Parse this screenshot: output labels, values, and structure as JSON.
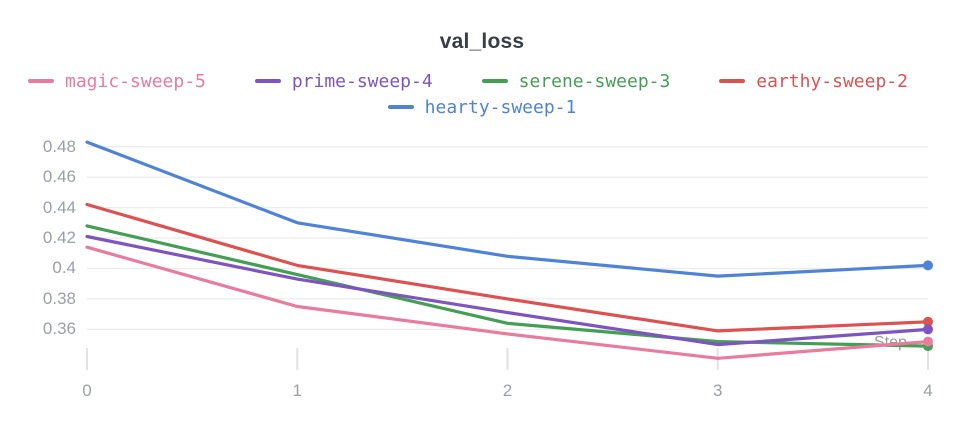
{
  "title": "val_loss",
  "xlabel": "Step",
  "chart_data": {
    "type": "line",
    "title": "val_loss",
    "xlabel": "Step",
    "ylabel": "",
    "x": [
      0,
      1,
      2,
      3,
      4
    ],
    "x_tick_labels": [
      "0",
      "1",
      "2",
      "3",
      "4"
    ],
    "y_ticks": [
      0.48,
      0.46,
      0.44,
      0.42,
      0.4,
      0.38,
      0.36
    ],
    "y_tick_labels": [
      "0.48",
      "0.46",
      "0.44",
      "0.42",
      "0.4",
      "0.38",
      "0.36"
    ],
    "ylim": [
      0.332,
      0.489
    ],
    "xlim": [
      0,
      4
    ],
    "grid": "horizontal",
    "legend_position": "top",
    "grid_color": "#ececec",
    "tick_color": "#e2e2e2",
    "axis_text_color": "#9b9fa6",
    "end_point_markers": true,
    "series": [
      {
        "name": "magic-sweep-5",
        "color": "#e87b9e",
        "values": [
          0.414,
          0.375,
          0.357,
          0.341,
          0.352
        ]
      },
      {
        "name": "prime-sweep-4",
        "color": "#7d54c0",
        "values": [
          0.421,
          0.393,
          0.371,
          0.35,
          0.36
        ]
      },
      {
        "name": "serene-sweep-3",
        "color": "#449e54",
        "values": [
          0.428,
          0.396,
          0.364,
          0.352,
          0.349
        ]
      },
      {
        "name": "earthy-sweep-2",
        "color": "#dd5151",
        "values": [
          0.442,
          0.402,
          0.38,
          0.359,
          0.365
        ]
      },
      {
        "name": "hearty-sweep-1",
        "color": "#4f83d7",
        "values": [
          0.483,
          0.43,
          0.408,
          0.395,
          0.402
        ]
      }
    ],
    "draw_order": [
      4,
      3,
      2,
      1,
      0
    ]
  }
}
